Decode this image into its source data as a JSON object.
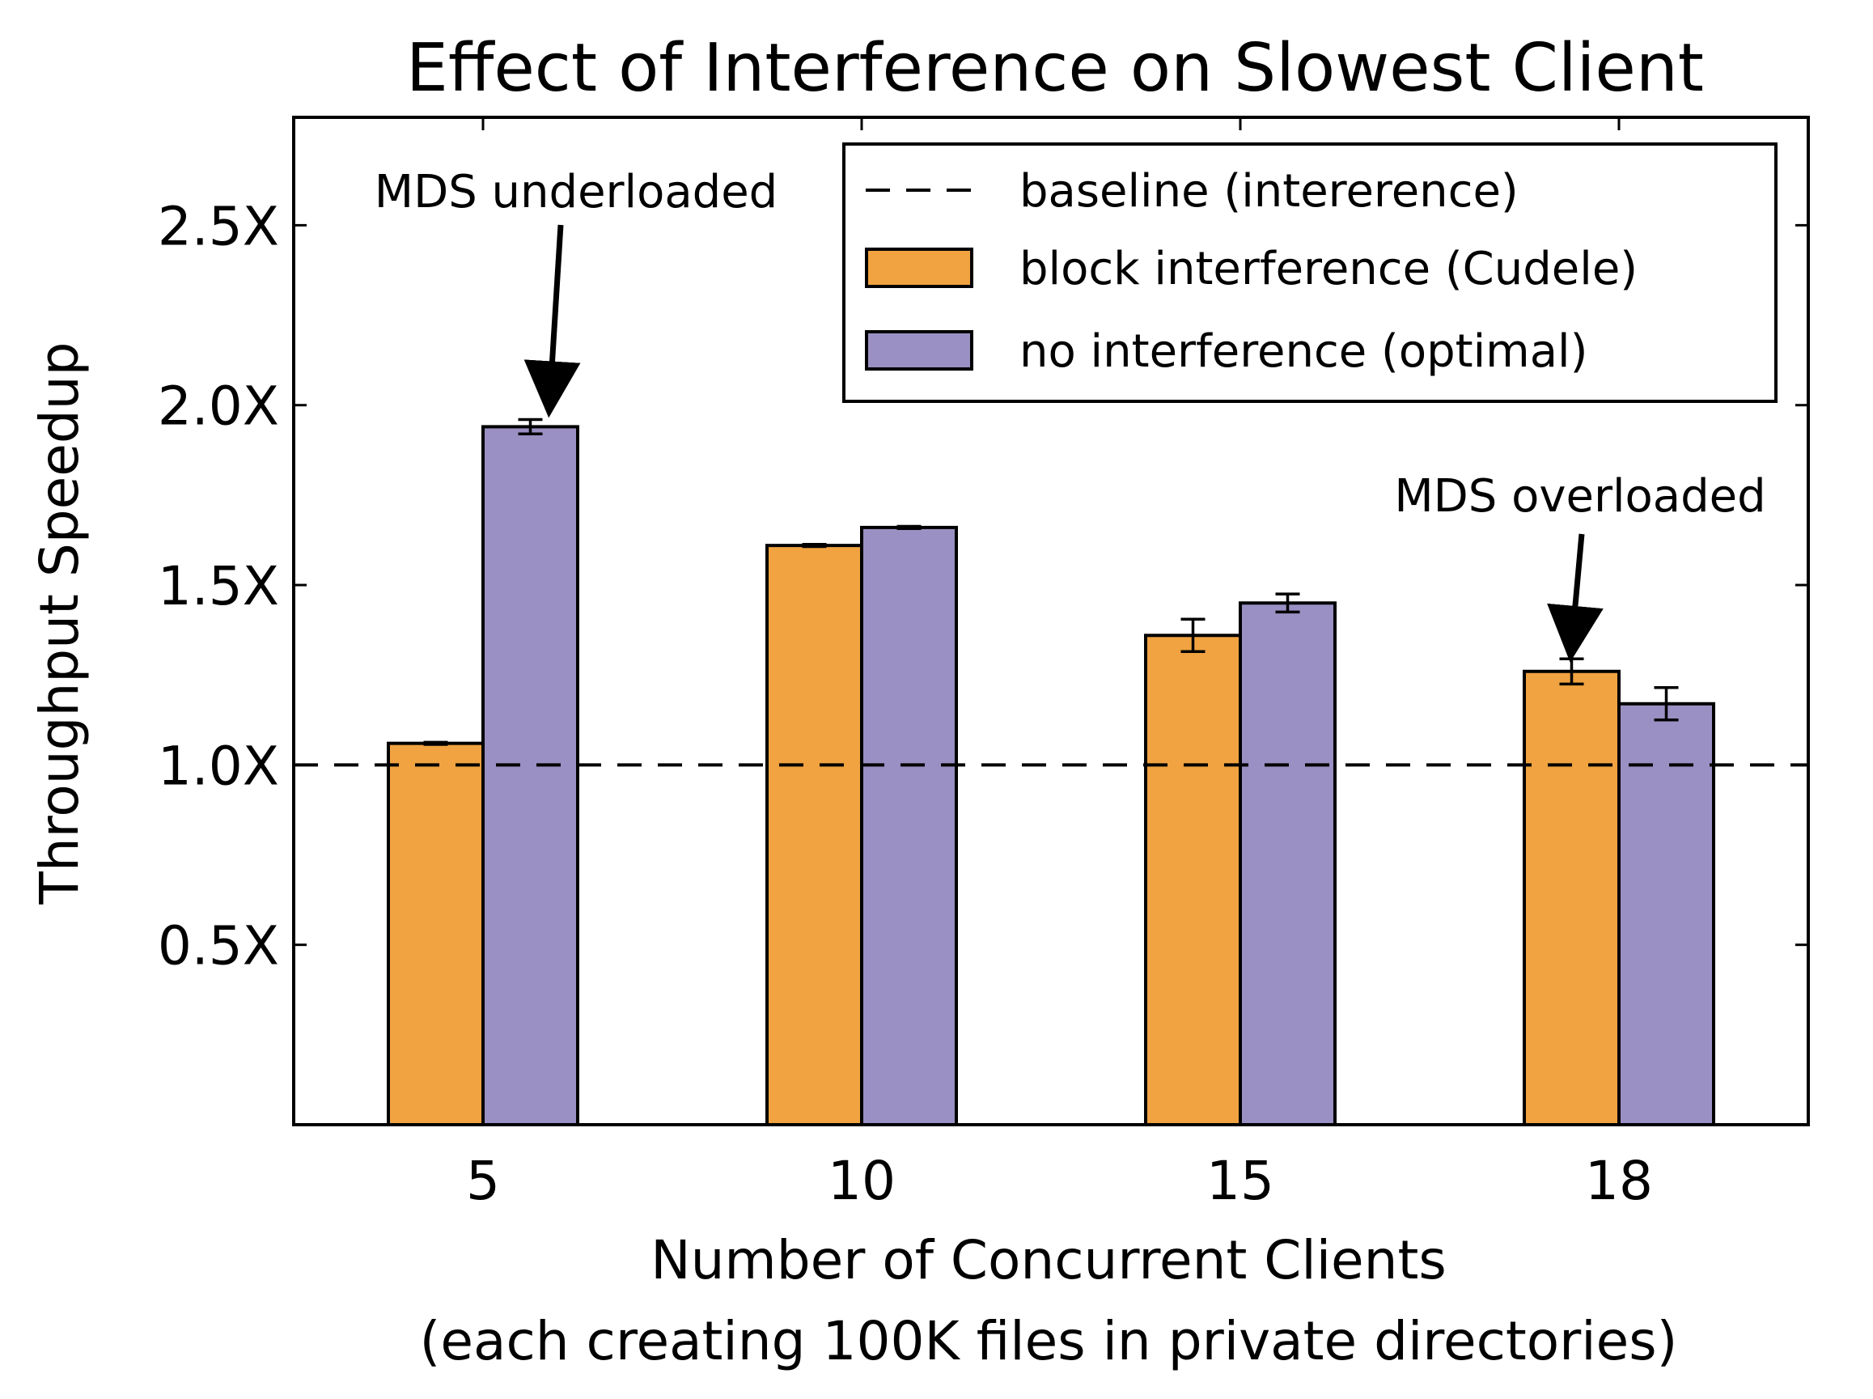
{
  "chart_data": {
    "type": "bar",
    "title": "Effect of Interference on Slowest Client",
    "xlabel_lines": [
      "Number of Concurrent Clients",
      "(each creating 100K files in private directories)"
    ],
    "ylabel": "Throughput Speedup",
    "categories": [
      "5",
      "10",
      "15",
      "18"
    ],
    "ylim": [
      0,
      2.8
    ],
    "yticks": [
      {
        "value": 0.5,
        "label": "0.5X"
      },
      {
        "value": 1.0,
        "label": "1.0X"
      },
      {
        "value": 1.5,
        "label": "1.5X"
      },
      {
        "value": 2.0,
        "label": "2.0X"
      },
      {
        "value": 2.5,
        "label": "2.5X"
      }
    ],
    "baseline": {
      "name": "baseline (intererence)",
      "value": 1.0
    },
    "series": [
      {
        "name": "block interference (Cudele)",
        "color": "#f0a340",
        "values": [
          1.06,
          1.61,
          1.36,
          1.26
        ],
        "errors": [
          0.003,
          0.003,
          0.045,
          0.035
        ]
      },
      {
        "name": "no interference (optimal)",
        "color": "#9a90c3",
        "values": [
          1.94,
          1.66,
          1.45,
          1.17
        ],
        "errors": [
          0.02,
          0.003,
          0.025,
          0.045
        ]
      }
    ],
    "legend_position": "top-right",
    "grid": false,
    "annotations": [
      {
        "text": "MDS underloaded",
        "category": "5",
        "series": 1
      },
      {
        "text": "MDS overloaded",
        "category": "18",
        "series": 0
      }
    ]
  }
}
